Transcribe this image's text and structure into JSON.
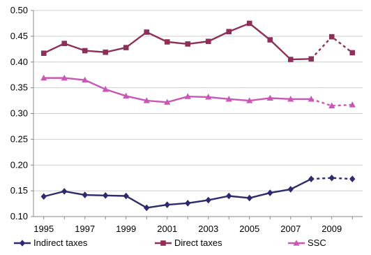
{
  "chart_data": {
    "type": "line",
    "x": [
      1995,
      1996,
      1997,
      1998,
      1999,
      2000,
      2001,
      2002,
      2003,
      2004,
      2005,
      2006,
      2007,
      2008,
      2009,
      2010
    ],
    "x_ticks": [
      "1995",
      "1997",
      "1999",
      "2001",
      "2003",
      "2005",
      "2007",
      "2009"
    ],
    "y_ticks": [
      "0.50",
      "0.45",
      "0.40",
      "0.35",
      "0.30",
      "0.25",
      "0.20",
      "0.15",
      "0.10"
    ],
    "ylim": [
      0.1,
      0.5
    ],
    "xlim": [
      1994.5,
      2010.5
    ],
    "solid_through": 2008,
    "dashed_after": 2008,
    "grid": "horizontal",
    "legend_position": "bottom",
    "series": [
      {
        "name": "Indirect taxes",
        "marker": "diamond",
        "color": "#2e2a6e",
        "values": [
          0.139,
          0.149,
          0.142,
          0.141,
          0.14,
          0.117,
          0.123,
          0.126,
          0.132,
          0.14,
          0.136,
          0.146,
          0.153,
          0.173,
          0.175,
          0.173
        ]
      },
      {
        "name": "Direct taxes",
        "marker": "square",
        "color": "#8e2f5a",
        "values": [
          0.417,
          0.436,
          0.422,
          0.419,
          0.428,
          0.458,
          0.439,
          0.435,
          0.44,
          0.459,
          0.475,
          0.443,
          0.405,
          0.406,
          0.449,
          0.418
        ]
      },
      {
        "name": "SSC",
        "marker": "triangle",
        "color": "#c957b6",
        "values": [
          0.369,
          0.369,
          0.365,
          0.347,
          0.334,
          0.325,
          0.322,
          0.333,
          0.332,
          0.328,
          0.325,
          0.33,
          0.328,
          0.328,
          0.315,
          0.317
        ]
      }
    ]
  }
}
